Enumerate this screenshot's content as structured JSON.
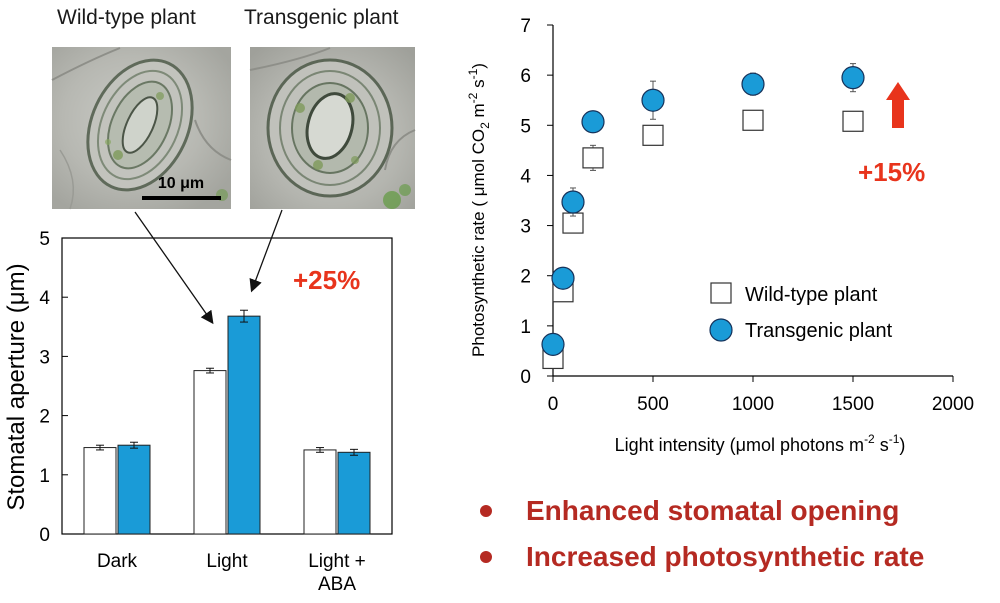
{
  "photos": {
    "wild_label": "Wild-type plant",
    "transgenic_label": "Transgenic plant",
    "scale_bar": "10 μm"
  },
  "colors": {
    "transgenic": "#1a9bd7",
    "wild": "#ffffff",
    "accent_red": "#e8341c",
    "bullet_red": "#b52a22"
  },
  "chart_data": [
    {
      "type": "bar",
      "ylabel": "Stomatal aperture (μm)",
      "ylim": [
        0,
        5
      ],
      "yticks": [
        0,
        1,
        2,
        3,
        4,
        5
      ],
      "categories": [
        [
          "Dark"
        ],
        [
          "Light"
        ],
        [
          "Light +",
          "ABA"
        ]
      ],
      "series": [
        {
          "key": "wild",
          "values": [
            1.46,
            2.76,
            1.42
          ],
          "errors": [
            0.04,
            0.04,
            0.04
          ]
        },
        {
          "key": "transgenic",
          "values": [
            1.5,
            3.68,
            1.38
          ],
          "errors": [
            0.05,
            0.1,
            0.05
          ]
        }
      ],
      "annotation": "+25%"
    },
    {
      "type": "scatter",
      "ylabel": "Photosynthetic  rate ( μmol CO2 m-2 s-1)",
      "ylabel_parts": [
        "Photosynthetic  rate ( μmol CO",
        "2",
        " m",
        "-2",
        " s",
        "-1",
        ")"
      ],
      "xlabel": "Light intensity (μmol photons m-2 s-1)",
      "xlabel_parts": [
        "Light intensity (μmol photons m",
        "-2",
        " s",
        "-1",
        ")"
      ],
      "xlim": [
        0,
        2000
      ],
      "ylim": [
        0,
        7
      ],
      "xticks": [
        0,
        500,
        1000,
        1500,
        2000
      ],
      "yticks": [
        0,
        1,
        2,
        3,
        4,
        5,
        6,
        7
      ],
      "series": [
        {
          "name": "Wild-type plant",
          "marker": "square",
          "x": [
            0,
            50,
            100,
            200,
            500,
            1000,
            1500
          ],
          "y": [
            0.35,
            1.68,
            3.05,
            4.35,
            4.8,
            5.1,
            5.08
          ],
          "err": [
            0.05,
            0.12,
            0.18,
            0.25,
            0.15,
            0.12,
            0.08
          ]
        },
        {
          "name": "Transgenic plant",
          "marker": "circle",
          "x": [
            0,
            50,
            100,
            200,
            500,
            1000,
            1500
          ],
          "y": [
            0.63,
            1.95,
            3.47,
            5.07,
            5.5,
            5.82,
            5.95
          ],
          "err": [
            0.06,
            0.2,
            0.28,
            0.08,
            0.38,
            0.22,
            0.28
          ]
        }
      ],
      "legend_position": "bottom-right",
      "annotation": "+15%"
    }
  ],
  "bullets": [
    "Enhanced stomatal opening",
    "Increased photosynthetic rate"
  ]
}
